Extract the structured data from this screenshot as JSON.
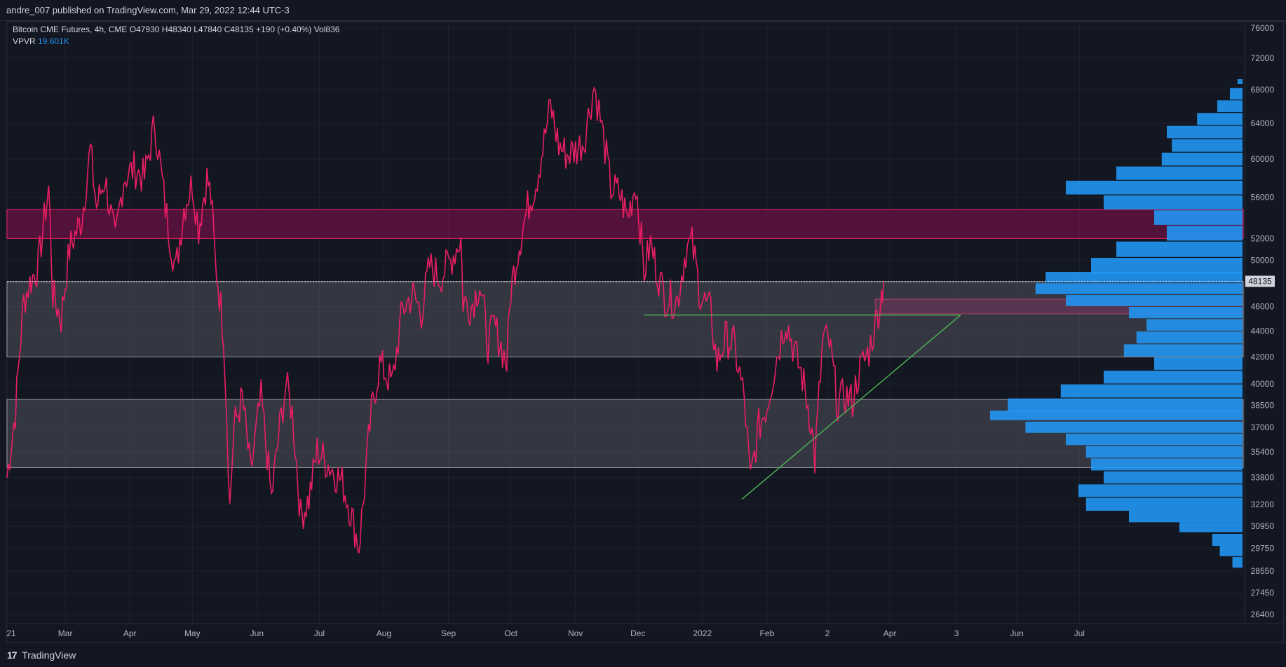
{
  "header": {
    "published_line": "andre_007 published on TradingView.com, Mar 29, 2022 12:44 UTC-3"
  },
  "legend": {
    "symbol": "Bitcoin CME Futures, 4h, CME",
    "open_label": "O",
    "open": "47930",
    "high_label": "H",
    "high": "48340",
    "low_label": "L",
    "low": "47840",
    "close_label": "C",
    "close": "48135",
    "change": "+190 (+0.40%)",
    "vol_label": "Vol",
    "vol": "836",
    "vpvr_label": "VPVR",
    "vpvr_value": "19.601K"
  },
  "footer": {
    "logo_glyph": "17",
    "brand": "TradingView"
  },
  "colors": {
    "background": "#131722",
    "candle": "#e91e63",
    "candle_wick": "#ffffff",
    "resistance_zone": "#880e4f",
    "support_zone": "#5d606b",
    "trendline": "#4caf50",
    "volume_profile": "#2196f3",
    "last_price_tag": "#d1d4dc"
  },
  "chart_data": {
    "type": "line",
    "title": "Bitcoin CME Futures, 4h, CME",
    "last_price": 48135,
    "last_price_label": "48135",
    "y_axis": {
      "scale": "log",
      "ticks": [
        "76000",
        "72000",
        "68000",
        "64000",
        "60000",
        "56000",
        "52000",
        "50000",
        "48000",
        "46000",
        "44000",
        "42000",
        "40000",
        "38500",
        "37000",
        "35400",
        "33800",
        "32200",
        "30950",
        "29750",
        "28550",
        "27450",
        "26400"
      ]
    },
    "x_axis": {
      "ticks": [
        {
          "label": "21",
          "date": "2021-02-01"
        },
        {
          "label": "Mar",
          "date": "2021-03-01"
        },
        {
          "label": "Apr",
          "date": "2021-04-01"
        },
        {
          "label": "May",
          "date": "2021-05-01"
        },
        {
          "label": "Jun",
          "date": "2021-06-01"
        },
        {
          "label": "Jul",
          "date": "2021-07-01"
        },
        {
          "label": "Aug",
          "date": "2021-08-01"
        },
        {
          "label": "Sep",
          "date": "2021-09-01"
        },
        {
          "label": "Oct",
          "date": "2021-10-01"
        },
        {
          "label": "Nov",
          "date": "2021-11-01"
        },
        {
          "label": "Dec",
          "date": "2021-12-01"
        },
        {
          "label": "2022",
          "date": "2022-01-01"
        },
        {
          "label": "Feb",
          "date": "2022-02-01"
        },
        {
          "label": "2",
          "date": "2022-03-02"
        },
        {
          "label": "Apr",
          "date": "2022-04-01"
        },
        {
          "label": "3",
          "date": "2022-05-03"
        },
        {
          "label": "Jun",
          "date": "2022-06-01"
        },
        {
          "label": "Jul",
          "date": "2022-07-01"
        }
      ]
    },
    "x_range": [
      "2021-02-01",
      "2022-08-25"
    ],
    "series": [
      {
        "points": [
          [
            "2021-02-01",
            33800
          ],
          [
            "2021-02-05",
            38000
          ],
          [
            "2021-02-09",
            46500
          ],
          [
            "2021-02-12",
            48000
          ],
          [
            "2021-02-16",
            49500
          ],
          [
            "2021-02-21",
            57000
          ],
          [
            "2021-02-23",
            47000
          ],
          [
            "2021-02-27",
            45000
          ],
          [
            "2021-03-03",
            51000
          ],
          [
            "2021-03-09",
            54000
          ],
          [
            "2021-03-13",
            61000
          ],
          [
            "2021-03-16",
            55000
          ],
          [
            "2021-03-20",
            58000
          ],
          [
            "2021-03-25",
            51500
          ],
          [
            "2021-03-29",
            58000
          ],
          [
            "2021-04-03",
            59000
          ],
          [
            "2021-04-08",
            58000
          ],
          [
            "2021-04-13",
            64000
          ],
          [
            "2021-04-18",
            55000
          ],
          [
            "2021-04-23",
            49000
          ],
          [
            "2021-04-27",
            55000
          ],
          [
            "2021-05-01",
            57500
          ],
          [
            "2021-05-04",
            53000
          ],
          [
            "2021-05-08",
            58000
          ],
          [
            "2021-05-10",
            56000
          ],
          [
            "2021-05-12",
            50000
          ],
          [
            "2021-05-16",
            44000
          ],
          [
            "2021-05-19",
            32000
          ],
          [
            "2021-05-21",
            37000
          ],
          [
            "2021-05-25",
            39000
          ],
          [
            "2021-05-29",
            34000
          ],
          [
            "2021-06-03",
            39000
          ],
          [
            "2021-06-08",
            32500
          ],
          [
            "2021-06-12",
            37000
          ],
          [
            "2021-06-15",
            40000
          ],
          [
            "2021-06-18",
            38000
          ],
          [
            "2021-06-22",
            31500
          ],
          [
            "2021-06-26",
            32500
          ],
          [
            "2021-06-30",
            35500
          ],
          [
            "2021-07-06",
            34500
          ],
          [
            "2021-07-12",
            33500
          ],
          [
            "2021-07-16",
            31800
          ],
          [
            "2021-07-20",
            29800
          ],
          [
            "2021-07-22",
            32200
          ],
          [
            "2021-07-26",
            38000
          ],
          [
            "2021-07-30",
            41500
          ],
          [
            "2021-08-05",
            40000
          ],
          [
            "2021-08-10",
            45800
          ],
          [
            "2021-08-15",
            47000
          ],
          [
            "2021-08-19",
            45500
          ],
          [
            "2021-08-23",
            49500
          ],
          [
            "2021-08-28",
            48500
          ],
          [
            "2021-09-02",
            50000
          ],
          [
            "2021-09-07",
            52000
          ],
          [
            "2021-09-08",
            46500
          ],
          [
            "2021-09-12",
            46000
          ],
          [
            "2021-09-16",
            48000
          ],
          [
            "2021-09-20",
            43000
          ],
          [
            "2021-09-23",
            44500
          ],
          [
            "2021-09-29",
            41500
          ],
          [
            "2021-10-01",
            47500
          ],
          [
            "2021-10-05",
            51500
          ],
          [
            "2021-10-09",
            55000
          ],
          [
            "2021-10-13",
            57500
          ],
          [
            "2021-10-17",
            62000
          ],
          [
            "2021-10-20",
            66000
          ],
          [
            "2021-10-24",
            61500
          ],
          [
            "2021-10-28",
            60500
          ],
          [
            "2021-11-01",
            61000
          ],
          [
            "2021-11-05",
            62000
          ],
          [
            "2021-11-10",
            68500
          ],
          [
            "2021-11-13",
            64500
          ],
          [
            "2021-11-18",
            57000
          ],
          [
            "2021-11-22",
            56500
          ],
          [
            "2021-11-26",
            54000
          ],
          [
            "2021-11-30",
            57500
          ],
          [
            "2021-12-04",
            49000
          ],
          [
            "2021-12-07",
            51500
          ],
          [
            "2021-12-11",
            48500
          ],
          [
            "2021-12-14",
            46800
          ],
          [
            "2021-12-20",
            46500
          ],
          [
            "2021-12-24",
            51000
          ],
          [
            "2021-12-27",
            51500
          ],
          [
            "2021-12-31",
            47000
          ],
          [
            "2022-01-05",
            45500
          ],
          [
            "2022-01-08",
            41500
          ],
          [
            "2022-01-12",
            43500
          ],
          [
            "2022-01-16",
            43000
          ],
          [
            "2022-01-21",
            39000
          ],
          [
            "2022-01-24",
            33500
          ],
          [
            "2022-01-28",
            37000
          ],
          [
            "2022-02-01",
            38500
          ],
          [
            "2022-02-05",
            41500
          ],
          [
            "2022-02-10",
            45000
          ],
          [
            "2022-02-14",
            42500
          ],
          [
            "2022-02-18",
            40500
          ],
          [
            "2022-02-22",
            37500
          ],
          [
            "2022-02-24",
            34800
          ],
          [
            "2022-02-28",
            43500
          ],
          [
            "2022-03-03",
            43000
          ],
          [
            "2022-03-07",
            38500
          ],
          [
            "2022-03-10",
            39200
          ],
          [
            "2022-03-14",
            38800
          ],
          [
            "2022-03-17",
            40800
          ],
          [
            "2022-03-22",
            42500
          ],
          [
            "2022-03-25",
            44500
          ],
          [
            "2022-03-28",
            47000
          ],
          [
            "2022-03-29",
            48135
          ]
        ]
      }
    ],
    "zones": [
      {
        "kind": "resistance",
        "price_low": 52000,
        "price_high": 54800,
        "from": "2021-02-01",
        "to": "extend"
      },
      {
        "kind": "resistance",
        "price_low": 45400,
        "price_high": 46600,
        "from": "2022-03-25",
        "to": "extend"
      },
      {
        "kind": "support",
        "price_low": 42000,
        "price_high": 48100,
        "from": "2021-02-01",
        "to": "extend"
      },
      {
        "kind": "support",
        "price_low": 34400,
        "price_high": 38900,
        "from": "2021-02-01",
        "to": "extend"
      }
    ],
    "lines": [
      {
        "kind": "horizontal",
        "price": 45300,
        "from": "2021-12-04",
        "to": "2022-05-05"
      },
      {
        "kind": "trendline",
        "from": [
          "2022-01-20",
          32500
        ],
        "to": [
          "2022-05-05",
          45300
        ]
      }
    ],
    "volume_profile": {
      "scale_max": 1,
      "bins": [
        {
          "price": 69000,
          "volume": 0.02
        },
        {
          "price": 67500,
          "volume": 0.05
        },
        {
          "price": 66000,
          "volume": 0.1
        },
        {
          "price": 64500,
          "volume": 0.18
        },
        {
          "price": 63000,
          "volume": 0.3
        },
        {
          "price": 61500,
          "volume": 0.28
        },
        {
          "price": 60000,
          "volume": 0.32
        },
        {
          "price": 58500,
          "volume": 0.5
        },
        {
          "price": 57000,
          "volume": 0.7
        },
        {
          "price": 55500,
          "volume": 0.55
        },
        {
          "price": 54000,
          "volume": 0.35
        },
        {
          "price": 52500,
          "volume": 0.3
        },
        {
          "price": 51000,
          "volume": 0.5
        },
        {
          "price": 49500,
          "volume": 0.6
        },
        {
          "price": 48500,
          "volume": 0.78
        },
        {
          "price": 47500,
          "volume": 0.82
        },
        {
          "price": 46500,
          "volume": 0.7
        },
        {
          "price": 45500,
          "volume": 0.45
        },
        {
          "price": 44500,
          "volume": 0.38
        },
        {
          "price": 43500,
          "volume": 0.42
        },
        {
          "price": 42500,
          "volume": 0.47
        },
        {
          "price": 41500,
          "volume": 0.35
        },
        {
          "price": 40500,
          "volume": 0.55
        },
        {
          "price": 39500,
          "volume": 0.72
        },
        {
          "price": 38500,
          "volume": 0.93
        },
        {
          "price": 37800,
          "volume": 1.0
        },
        {
          "price": 37000,
          "volume": 0.86
        },
        {
          "price": 36200,
          "volume": 0.7
        },
        {
          "price": 35400,
          "volume": 0.62
        },
        {
          "price": 34600,
          "volume": 0.6
        },
        {
          "price": 33800,
          "volume": 0.55
        },
        {
          "price": 33000,
          "volume": 0.65
        },
        {
          "price": 32200,
          "volume": 0.62
        },
        {
          "price": 31500,
          "volume": 0.45
        },
        {
          "price": 30900,
          "volume": 0.25
        },
        {
          "price": 30200,
          "volume": 0.12
        },
        {
          "price": 29600,
          "volume": 0.09
        },
        {
          "price": 29000,
          "volume": 0.04
        }
      ]
    }
  }
}
